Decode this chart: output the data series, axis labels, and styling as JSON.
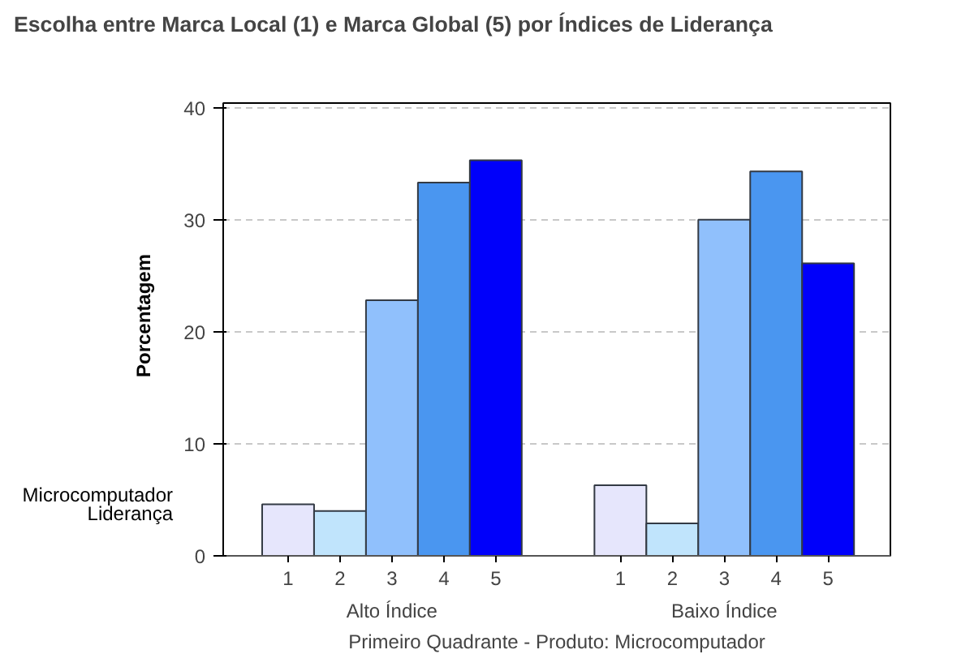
{
  "chart_data": {
    "type": "bar",
    "title": "Escolha entre Marca Local (1) e Marca Global (5) por Índices de Liderança",
    "xlabel": "Primeiro Quadrante - Produto: Microcomputador",
    "ylabel": "Porcentagem",
    "categories": [
      "Alto Índice",
      "Baixo Índice"
    ],
    "series": [
      {
        "name": "1",
        "color": "#e6e6fc",
        "values": [
          4.6,
          6.3
        ]
      },
      {
        "name": "2",
        "color": "#c0e4fc",
        "values": [
          4.0,
          2.9
        ]
      },
      {
        "name": "3",
        "color": "#90c0fc",
        "values": [
          22.8,
          30.0
        ]
      },
      {
        "name": "4",
        "color": "#4a96f0",
        "values": [
          33.3,
          34.3
        ]
      },
      {
        "name": "5",
        "color": "#0000fa",
        "values": [
          35.3,
          26.1
        ]
      }
    ],
    "annotations": [
      "Microcomputador",
      "Liderança"
    ],
    "ylim": [
      0,
      40.4
    ],
    "yticks": [
      0,
      10,
      20,
      30,
      40
    ],
    "grid": "y"
  }
}
